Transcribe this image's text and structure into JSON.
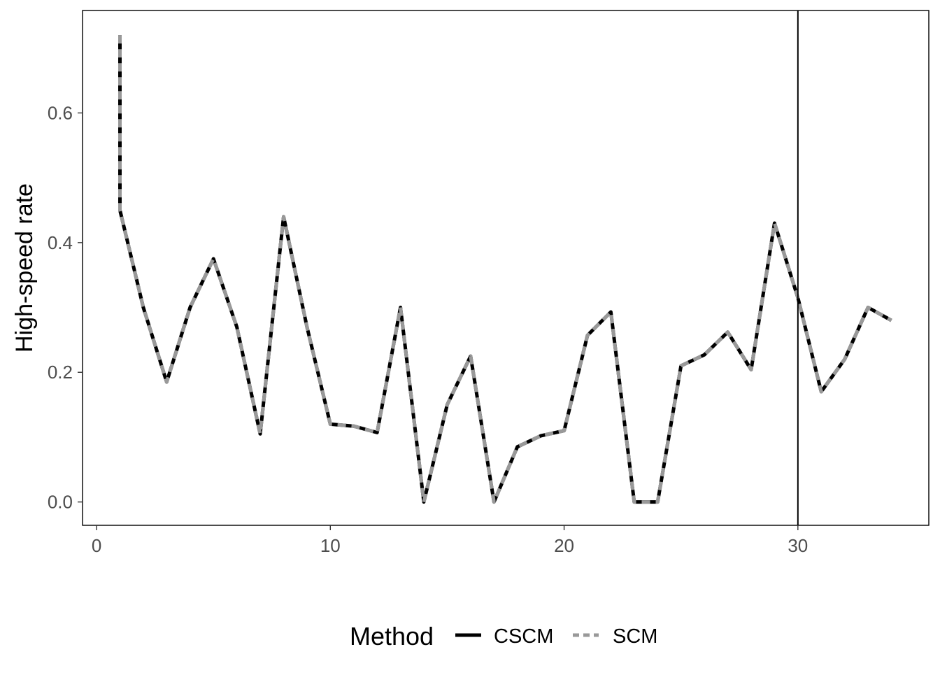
{
  "chart_data": {
    "type": "line",
    "title": "",
    "xlabel": "",
    "ylabel": "High-speed rate",
    "xlim": [
      -0.6,
      35.6
    ],
    "ylim": [
      -0.036,
      0.758
    ],
    "x_ticks": [
      0,
      10,
      20,
      30
    ],
    "x_tick_labels": [
      "0",
      "10",
      "20",
      "30"
    ],
    "y_ticks": [
      0.0,
      0.2,
      0.4,
      0.6
    ],
    "y_tick_labels": [
      "0.0",
      "0.2",
      "0.4",
      "0.6"
    ],
    "grid": false,
    "vline_x": 30,
    "legend": {
      "title": "Method",
      "position": "bottom"
    },
    "series": [
      {
        "name": "CSCM",
        "color": "#000000",
        "dash": "solid",
        "x": [
          1,
          1,
          2,
          3,
          4,
          5,
          6,
          7,
          8,
          9,
          10,
          11,
          12,
          13,
          14,
          15,
          16,
          17,
          18,
          19,
          20,
          21,
          22,
          23,
          24,
          25,
          26,
          27,
          28,
          29,
          30,
          31,
          32,
          33,
          34
        ],
        "y": [
          0.72,
          0.45,
          0.3,
          0.185,
          0.3,
          0.375,
          0.27,
          0.105,
          0.44,
          0.27,
          0.12,
          0.117,
          0.107,
          0.3,
          0.0,
          0.15,
          0.225,
          0.0,
          0.085,
          0.102,
          0.11,
          0.257,
          0.293,
          0.0,
          0.0,
          0.21,
          0.227,
          0.262,
          0.204,
          0.43,
          0.315,
          0.17,
          0.22,
          0.3,
          0.28
        ]
      },
      {
        "name": "SCM",
        "color": "#999999",
        "dash": "dashed",
        "x": [
          1,
          1,
          2,
          3,
          4,
          5,
          6,
          7,
          8,
          9,
          10,
          11,
          12,
          13,
          14,
          15,
          16,
          17,
          18,
          19,
          20,
          21,
          22,
          23,
          24,
          25,
          26,
          27,
          28,
          29,
          30,
          31,
          32,
          33,
          34
        ],
        "y": [
          0.72,
          0.45,
          0.3,
          0.185,
          0.3,
          0.375,
          0.27,
          0.105,
          0.44,
          0.27,
          0.12,
          0.117,
          0.107,
          0.3,
          0.0,
          0.15,
          0.225,
          0.0,
          0.085,
          0.102,
          0.11,
          0.257,
          0.293,
          0.0,
          0.0,
          0.21,
          0.227,
          0.262,
          0.204,
          0.43,
          0.315,
          0.17,
          0.22,
          0.3,
          0.28
        ]
      }
    ]
  }
}
